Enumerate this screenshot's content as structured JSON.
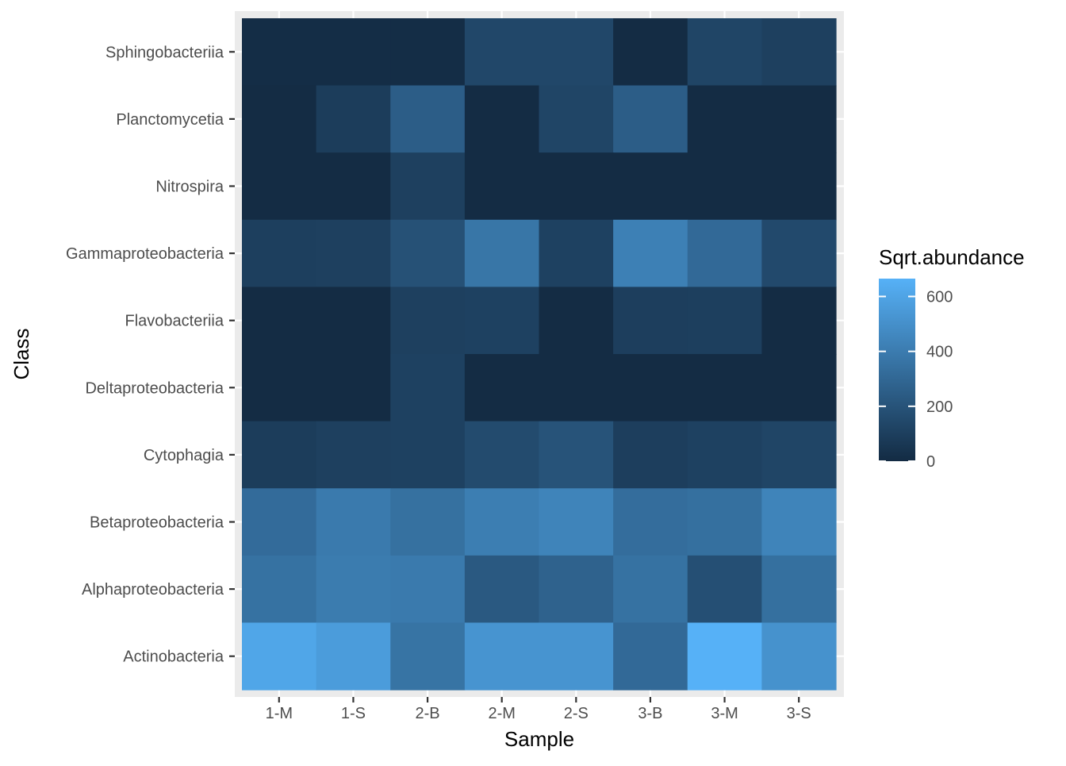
{
  "chart_data": {
    "type": "heatmap",
    "title": "",
    "xlabel": "Sample",
    "ylabel": "Class",
    "x_categories": [
      "1-M",
      "1-S",
      "2-B",
      "2-M",
      "2-S",
      "3-B",
      "3-M",
      "3-S"
    ],
    "y_categories": [
      "Sphingobacteriia",
      "Planctomycetia",
      "Nitrospira",
      "Gammaproteobacteria",
      "Flavobacteriia",
      "Deltaproteobacteria",
      "Cytophagia",
      "Betaproteobacteria",
      "Alphaproteobacteria",
      "Actinobacteria"
    ],
    "values": [
      [
        10,
        10,
        10,
        140,
        140,
        5,
        130,
        105
      ],
      [
        5,
        90,
        250,
        5,
        130,
        250,
        5,
        5
      ],
      [
        5,
        5,
        105,
        5,
        5,
        5,
        5,
        5
      ],
      [
        100,
        105,
        190,
        370,
        110,
        420,
        310,
        150
      ],
      [
        5,
        5,
        105,
        110,
        5,
        95,
        100,
        5
      ],
      [
        5,
        5,
        110,
        5,
        5,
        5,
        5,
        5
      ],
      [
        90,
        105,
        110,
        160,
        200,
        95,
        110,
        130
      ],
      [
        320,
        390,
        345,
        410,
        440,
        330,
        340,
        440
      ],
      [
        350,
        400,
        390,
        230,
        275,
        350,
        180,
        340
      ],
      [
        610,
        560,
        360,
        520,
        520,
        310,
        665,
        510
      ]
    ],
    "color_scale": {
      "domain": [
        0,
        665
      ],
      "low": "#132b43",
      "high": "#56b1f7"
    },
    "legend": {
      "title": "Sqrt.abundance",
      "position": "right",
      "ticks": [
        0,
        200,
        400,
        600
      ],
      "labels": [
        "0",
        "200",
        "400",
        "600"
      ]
    },
    "grid": true
  }
}
